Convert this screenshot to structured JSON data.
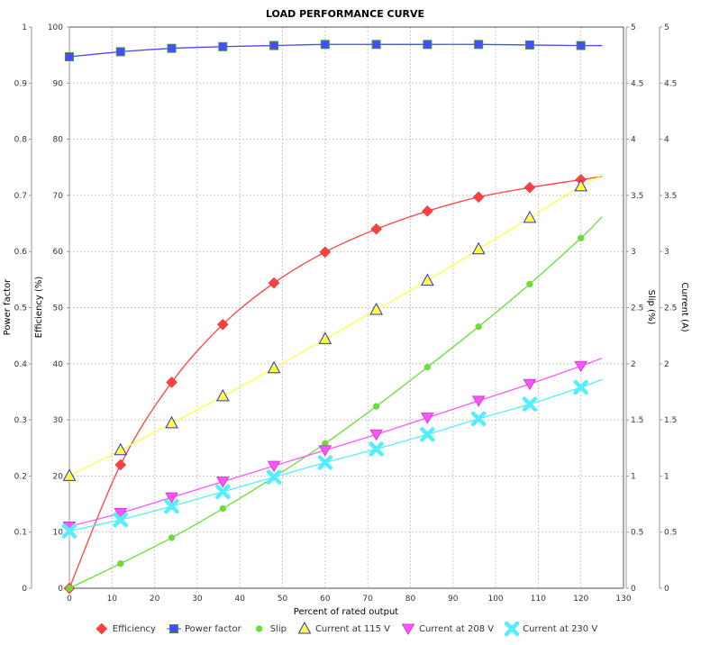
{
  "chart_data": {
    "type": "line",
    "title": "LOAD PERFORMANCE CURVE",
    "xlabel": "Percent of rated output",
    "xlim": [
      0,
      130
    ],
    "xticks": [
      0,
      10,
      20,
      30,
      40,
      50,
      60,
      70,
      80,
      90,
      100,
      110,
      120,
      130
    ],
    "axes": {
      "power_factor": {
        "label": "Power factor",
        "lim": [
          0,
          1
        ],
        "ticks": [
          "0",
          "0.1",
          "0.2",
          "0.3",
          "0.4",
          "0.5",
          "0.6",
          "0.7",
          "0.8",
          "0.9",
          "1"
        ]
      },
      "efficiency": {
        "label": "Efficiency (%)",
        "lim": [
          0,
          100
        ],
        "ticks": [
          "0",
          "10",
          "20",
          "30",
          "40",
          "50",
          "60",
          "70",
          "80",
          "90",
          "100"
        ]
      },
      "slip": {
        "label": "Slip (%)",
        "lim": [
          0,
          5
        ],
        "ticks": [
          "0",
          "0.5",
          "1",
          "1.5",
          "2",
          "2.5",
          "3",
          "3.5",
          "4",
          "4.5",
          "5"
        ]
      },
      "current": {
        "label": "Current (A)",
        "lim": [
          0,
          5
        ],
        "ticks": [
          "0",
          "0.5",
          "1",
          "1.5",
          "2",
          "2.5",
          "3",
          "3.5",
          "4",
          "4.5",
          "5"
        ]
      }
    },
    "grid": true,
    "legend_position": "bottom",
    "x": [
      0,
      12,
      24,
      36,
      48,
      60,
      72,
      84,
      96,
      108,
      120
    ],
    "series": [
      {
        "name": "Efficiency",
        "axis": "efficiency",
        "color": "#ff4040",
        "marker": "diamond",
        "values": [
          0,
          22,
          36.7,
          47,
          54.4,
          59.9,
          64,
          67.2,
          69.7,
          71.4,
          72.8
        ],
        "trend_end": 73.4
      },
      {
        "name": "Power factor",
        "axis": "power_factor",
        "color": "#4a4aff",
        "marker": "square",
        "values": [
          0.947,
          0.956,
          0.962,
          0.965,
          0.967,
          0.969,
          0.969,
          0.969,
          0.969,
          0.968,
          0.967
        ],
        "trend_end": 0.967
      },
      {
        "name": "Slip",
        "axis": "slip",
        "color": "#66e033",
        "marker": "circle",
        "values": [
          0,
          0.22,
          0.45,
          0.71,
          0.99,
          1.29,
          1.62,
          1.97,
          2.33,
          2.71,
          3.12
        ],
        "trend_end": 3.31
      },
      {
        "name": "Current at 115 V",
        "axis": "current",
        "color": "#ffff40",
        "marker": "triangle-up",
        "values": [
          1.0,
          1.23,
          1.47,
          1.71,
          1.96,
          2.22,
          2.48,
          2.74,
          3.02,
          3.3,
          3.58
        ],
        "trend_end": 3.68
      },
      {
        "name": "Current at 208 V",
        "axis": "current",
        "color": "#ff55ff",
        "marker": "triangle-down",
        "values": [
          0.55,
          0.67,
          0.81,
          0.95,
          1.09,
          1.23,
          1.37,
          1.52,
          1.67,
          1.82,
          1.98
        ],
        "trend_end": 2.05
      },
      {
        "name": "Current at 230 V",
        "axis": "current",
        "color": "#55eeff",
        "marker": "cross",
        "values": [
          0.51,
          0.61,
          0.73,
          0.86,
          0.99,
          1.12,
          1.24,
          1.37,
          1.51,
          1.64,
          1.79
        ],
        "trend_end": 1.86
      }
    ]
  }
}
